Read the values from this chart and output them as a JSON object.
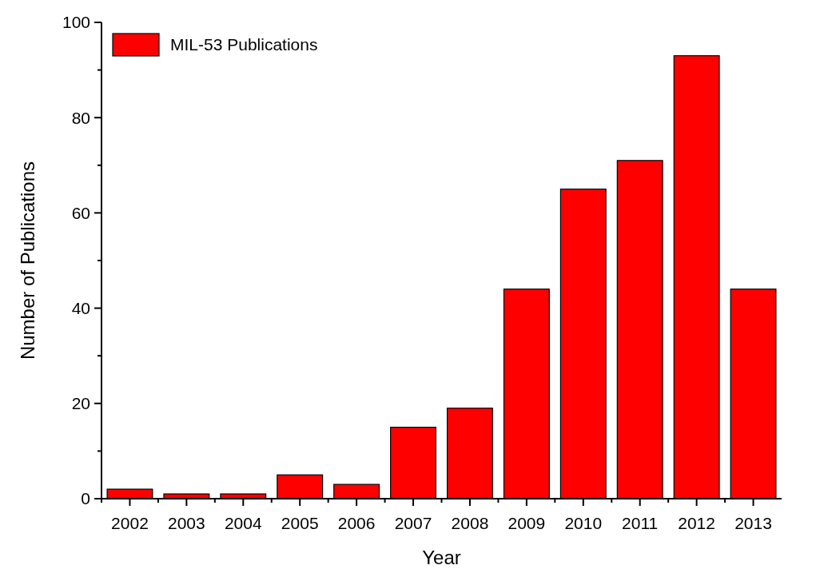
{
  "chart_data": {
    "type": "bar",
    "xlabel": "Year",
    "ylabel": "Number of Publications",
    "categories": [
      "2002",
      "2003",
      "2004",
      "2005",
      "2006",
      "2007",
      "2008",
      "2009",
      "2010",
      "2011",
      "2012",
      "2013"
    ],
    "series": [
      {
        "name": "MIL-53 Publications",
        "color": "#ff0000",
        "values": [
          2,
          1,
          1,
          5,
          3,
          15,
          19,
          44,
          65,
          71,
          93,
          44
        ]
      }
    ],
    "ylim": [
      0,
      100
    ],
    "yticks": [
      0,
      {
        "value": 10,
        "label": null
      },
      20,
      {
        "value": 30,
        "label": null
      },
      40,
      {
        "value": 50,
        "label": null
      },
      60,
      {
        "value": 70,
        "label": null
      },
      80,
      {
        "value": 90,
        "label": null
      },
      100
    ],
    "grid": false,
    "legend": "top left"
  }
}
